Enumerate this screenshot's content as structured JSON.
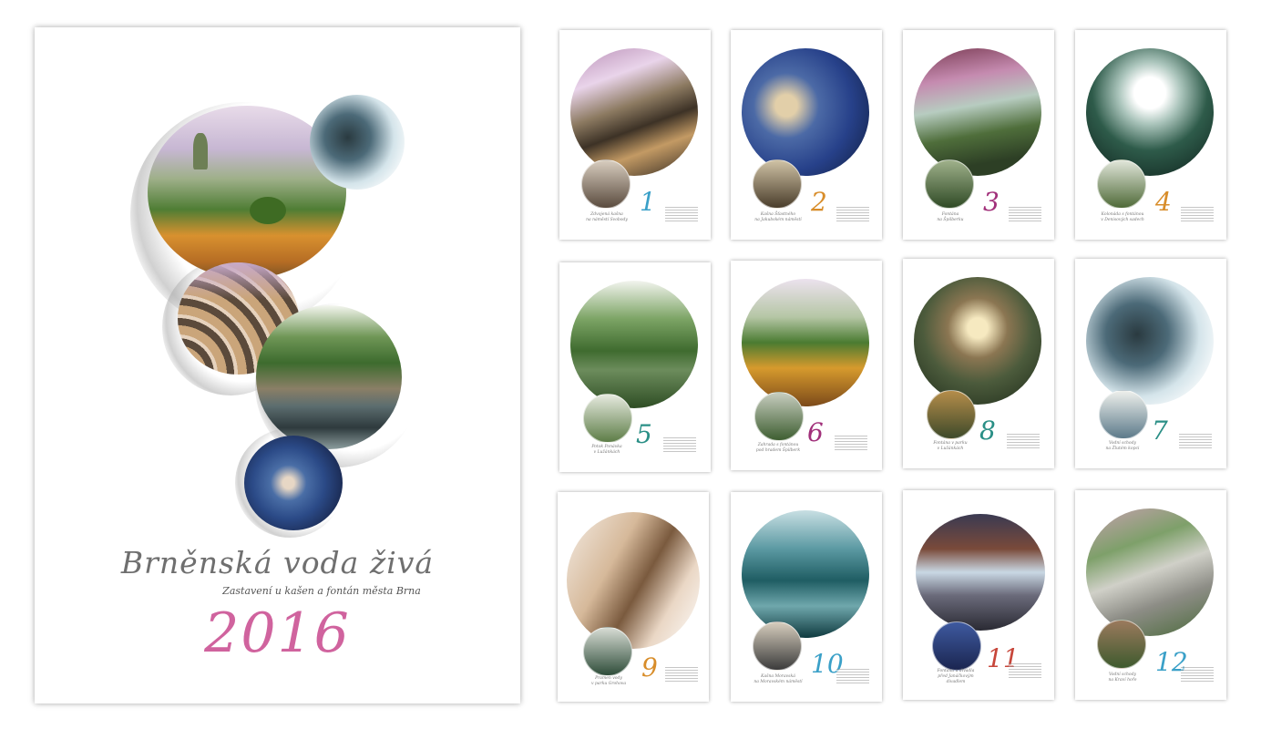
{
  "cover": {
    "title": "Brněnská voda živá",
    "subtitle": "Zastavení u kašen a fontán města Brna",
    "year": "2016"
  },
  "months": [
    {
      "number": "1",
      "color": "#3aa0c8",
      "caption": [
        "Zdvojená kašna",
        "na náměstí Svobody"
      ]
    },
    {
      "number": "2",
      "color": "#d88d2a",
      "caption": [
        "Kašna Šťastného",
        "na Jakubském náměstí"
      ]
    },
    {
      "number": "3",
      "color": "#a1307a",
      "caption": [
        "Fontána",
        "na Špilberku"
      ]
    },
    {
      "number": "4",
      "color": "#d88d2a",
      "caption": [
        "Kolonáda s fontánou",
        "v Denisových sadech"
      ]
    },
    {
      "number": "5",
      "color": "#2a8f86",
      "caption": [
        "Potok Ponávka",
        "v Lužánkách"
      ]
    },
    {
      "number": "6",
      "color": "#a1307a",
      "caption": [
        "Zahrada s fontánou",
        "pod hradem Špilberk"
      ]
    },
    {
      "number": "8",
      "color": "#2a8f86",
      "caption": [
        "Fontána v parku",
        "v Lužánkách"
      ]
    },
    {
      "number": "7",
      "color": "#2a8f86",
      "caption": [
        "Vodní schody",
        "na Žlutém kopci"
      ]
    },
    {
      "number": "9",
      "color": "#d88d2a",
      "caption": [
        "Pramen vody",
        "v parku Grohova"
      ]
    },
    {
      "number": "10",
      "color": "#3aa0c8",
      "caption": [
        "Kašna Moravská",
        "na Moravském náměstí"
      ]
    },
    {
      "number": "11",
      "color": "#c7463a",
      "caption": [
        "Fontána u divadla",
        "před Janáčkovým divadlem"
      ]
    },
    {
      "number": "12",
      "color": "#3aa0c8",
      "caption": [
        "Vodní schody",
        "na Kraví hoře"
      ]
    }
  ]
}
